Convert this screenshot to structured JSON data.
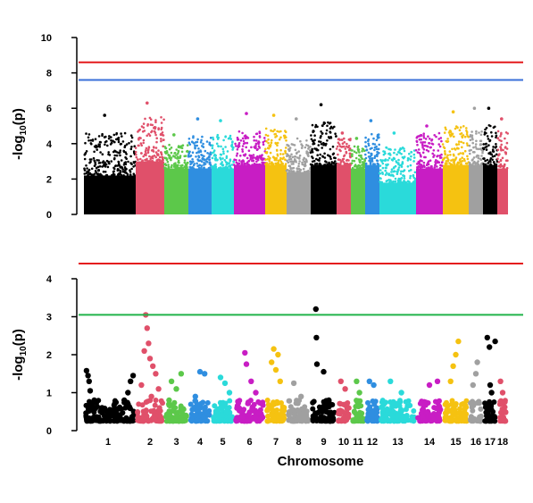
{
  "chart_data": [
    {
      "type": "scatter",
      "kind": "manhattan",
      "panel": "top",
      "ylabel": "-log10(p)",
      "ylim": [
        0,
        10
      ],
      "yticks": [
        0,
        2,
        4,
        6,
        8,
        10
      ],
      "thresholds": [
        {
          "value": 8.6,
          "color": "#e41a1c"
        },
        {
          "value": 7.6,
          "color": "#3a6fd8"
        }
      ],
      "chromosomes": [
        {
          "name": "1",
          "color": "#000000",
          "base": 2.2,
          "top": 4.6,
          "peak": 5.6
        },
        {
          "name": "2",
          "color": "#e0506a",
          "base": 3.0,
          "top": 5.5,
          "peak": 6.3
        },
        {
          "name": "3",
          "color": "#5cc84a",
          "base": 2.6,
          "top": 4.0,
          "peak": 4.5
        },
        {
          "name": "4",
          "color": "#2f8ee0",
          "base": 2.6,
          "top": 4.5,
          "peak": 5.4
        },
        {
          "name": "5",
          "color": "#2adada",
          "base": 2.6,
          "top": 4.5,
          "peak": 5.3
        },
        {
          "name": "6",
          "color": "#c81dc4",
          "base": 2.8,
          "top": 4.7,
          "peak": 5.7
        },
        {
          "name": "7",
          "color": "#f5c211",
          "base": 2.8,
          "top": 4.9,
          "peak": 5.6
        },
        {
          "name": "8",
          "color": "#a0a0a0",
          "base": 2.4,
          "top": 4.3,
          "peak": 5.4
        },
        {
          "name": "9",
          "color": "#000000",
          "base": 2.8,
          "top": 5.2,
          "peak": 6.2
        },
        {
          "name": "10",
          "color": "#e0506a",
          "base": 2.8,
          "top": 4.3,
          "peak": 4.6
        },
        {
          "name": "11",
          "color": "#5cc84a",
          "base": 2.6,
          "top": 3.9,
          "peak": 4.3
        },
        {
          "name": "12",
          "color": "#2f8ee0",
          "base": 2.8,
          "top": 4.6,
          "peak": 5.3
        },
        {
          "name": "13",
          "color": "#2adada",
          "base": 1.8,
          "top": 3.8,
          "peak": 4.6
        },
        {
          "name": "14",
          "color": "#c81dc4",
          "base": 2.6,
          "top": 4.6,
          "peak": 5.0
        },
        {
          "name": "15",
          "color": "#f5c211",
          "base": 2.8,
          "top": 5.0,
          "peak": 5.8
        },
        {
          "name": "16",
          "color": "#a0a0a0",
          "base": 2.8,
          "top": 4.7,
          "peak": 6.0
        },
        {
          "name": "17",
          "color": "#000000",
          "base": 2.8,
          "top": 5.1,
          "peak": 6.0
        },
        {
          "name": "18",
          "color": "#e0506a",
          "base": 2.6,
          "top": 4.8,
          "peak": 5.4
        }
      ]
    },
    {
      "type": "scatter",
      "kind": "manhattan",
      "panel": "bottom",
      "ylabel": "-log10(p)",
      "xlabel": "Chromosome",
      "ylim": [
        0,
        4.5
      ],
      "yticks": [
        0,
        1,
        2,
        3,
        4
      ],
      "thresholds": [
        {
          "value": 4.4,
          "color": "#e41a1c"
        },
        {
          "value": 3.05,
          "color": "#22b34a"
        }
      ],
      "chromosomes": [
        {
          "name": "1",
          "color": "#000000",
          "points": [
            [
              0.05,
              1.58
            ],
            [
              0.08,
              1.45
            ],
            [
              0.1,
              1.3
            ],
            [
              0.12,
              1.05
            ],
            [
              0.2,
              0.8
            ],
            [
              0.35,
              0.6
            ],
            [
              0.5,
              0.55
            ],
            [
              0.6,
              0.5
            ],
            [
              0.78,
              0.8
            ],
            [
              0.85,
              1.0
            ],
            [
              0.9,
              1.3
            ],
            [
              0.95,
              1.45
            ]
          ]
        },
        {
          "name": "2",
          "color": "#e0506a",
          "points": [
            [
              0.35,
              3.05
            ],
            [
              0.4,
              2.7
            ],
            [
              0.45,
              2.3
            ],
            [
              0.3,
              2.1
            ],
            [
              0.5,
              1.9
            ],
            [
              0.6,
              1.7
            ],
            [
              0.7,
              1.5
            ],
            [
              0.2,
              1.2
            ],
            [
              0.8,
              1.1
            ],
            [
              0.55,
              0.9
            ]
          ]
        },
        {
          "name": "3",
          "color": "#5cc84a",
          "points": [
            [
              0.3,
              1.3
            ],
            [
              0.7,
              1.5
            ],
            [
              0.5,
              1.1
            ],
            [
              0.2,
              0.8
            ]
          ]
        },
        {
          "name": "4",
          "color": "#2f8ee0",
          "points": [
            [
              0.5,
              1.55
            ],
            [
              0.7,
              1.5
            ],
            [
              0.3,
              0.9
            ]
          ]
        },
        {
          "name": "5",
          "color": "#2adada",
          "points": [
            [
              0.4,
              1.4
            ],
            [
              0.6,
              1.25
            ],
            [
              0.8,
              1.0
            ]
          ]
        },
        {
          "name": "6",
          "color": "#c81dc4",
          "points": [
            [
              0.35,
              2.05
            ],
            [
              0.4,
              1.75
            ],
            [
              0.55,
              1.3
            ],
            [
              0.7,
              1.0
            ]
          ]
        },
        {
          "name": "7",
          "color": "#f5c211",
          "points": [
            [
              0.4,
              2.15
            ],
            [
              0.3,
              1.8
            ],
            [
              0.6,
              2.0
            ],
            [
              0.5,
              1.6
            ],
            [
              0.7,
              1.3
            ]
          ]
        },
        {
          "name": "8",
          "color": "#a0a0a0",
          "points": [
            [
              0.3,
              1.25
            ],
            [
              0.6,
              0.9
            ]
          ]
        },
        {
          "name": "9",
          "color": "#000000",
          "points": [
            [
              0.2,
              3.2
            ],
            [
              0.22,
              2.45
            ],
            [
              0.24,
              1.75
            ],
            [
              0.5,
              1.55
            ],
            [
              0.7,
              0.8
            ]
          ]
        },
        {
          "name": "10",
          "color": "#e0506a",
          "points": [
            [
              0.3,
              1.3
            ],
            [
              0.6,
              1.1
            ]
          ]
        },
        {
          "name": "11",
          "color": "#5cc84a",
          "points": [
            [
              0.4,
              1.3
            ],
            [
              0.6,
              1.0
            ]
          ]
        },
        {
          "name": "12",
          "color": "#2f8ee0",
          "points": [
            [
              0.3,
              1.3
            ],
            [
              0.6,
              1.2
            ]
          ]
        },
        {
          "name": "13",
          "color": "#2adada",
          "points": [
            [
              0.3,
              1.3
            ],
            [
              0.6,
              1.0
            ]
          ]
        },
        {
          "name": "14",
          "color": "#c81dc4",
          "points": [
            [
              0.5,
              1.2
            ],
            [
              0.8,
              1.3
            ]
          ]
        },
        {
          "name": "15",
          "color": "#f5c211",
          "points": [
            [
              0.6,
              2.35
            ],
            [
              0.5,
              2.0
            ],
            [
              0.4,
              1.7
            ],
            [
              0.3,
              1.3
            ]
          ]
        },
        {
          "name": "16",
          "color": "#a0a0a0",
          "points": [
            [
              0.6,
              1.8
            ],
            [
              0.5,
              1.5
            ],
            [
              0.3,
              1.2
            ]
          ]
        },
        {
          "name": "17",
          "color": "#000000",
          "points": [
            [
              0.3,
              2.45
            ],
            [
              0.45,
              2.2
            ],
            [
              0.85,
              2.35
            ],
            [
              0.5,
              1.2
            ],
            [
              0.6,
              1.0
            ]
          ]
        },
        {
          "name": "18",
          "color": "#e0506a",
          "points": [
            [
              0.3,
              1.3
            ],
            [
              0.5,
              1.0
            ]
          ]
        }
      ]
    }
  ]
}
